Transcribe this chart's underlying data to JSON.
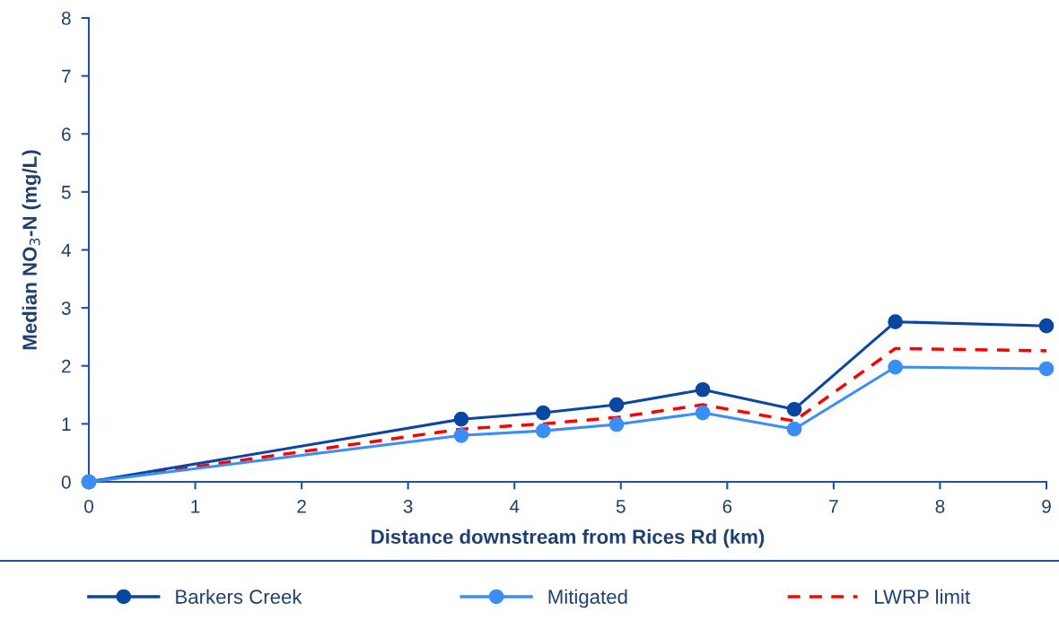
{
  "chart_data": {
    "type": "line",
    "xlabel": "Distance downstream from Rices Rd (km)",
    "ylabel": "Median NO$_{3}$-N (mg/L)",
    "x": [
      0,
      3.5,
      4.27,
      4.96,
      5.77,
      6.63,
      7.58,
      9.0
    ],
    "series": [
      {
        "name": "Barkers Creek",
        "color": "#0a47a0",
        "marker": "circle",
        "values": [
          0,
          1.08,
          1.19,
          1.33,
          1.59,
          1.25,
          2.76,
          2.69
        ]
      },
      {
        "name": "Mitigated",
        "color": "#3a8ef5",
        "marker": "circle",
        "values": [
          0,
          0.8,
          0.88,
          0.99,
          1.19,
          0.91,
          1.98,
          1.95
        ]
      },
      {
        "name": "LWRP limit",
        "color": "#ff0000",
        "marker": "none",
        "line_style": "dashed",
        "values": [
          0,
          0.91,
          1.0,
          1.11,
          1.33,
          1.05,
          2.3,
          2.26
        ]
      }
    ],
    "xlim": [
      0,
      9
    ],
    "xticks": [
      0,
      1,
      2,
      3,
      4,
      5,
      6,
      7,
      8,
      9
    ],
    "ylim": [
      0,
      8
    ],
    "yticks": [
      0,
      1,
      2,
      3,
      4,
      5,
      6,
      7,
      8
    ],
    "grid": false,
    "legend": "bottom"
  }
}
